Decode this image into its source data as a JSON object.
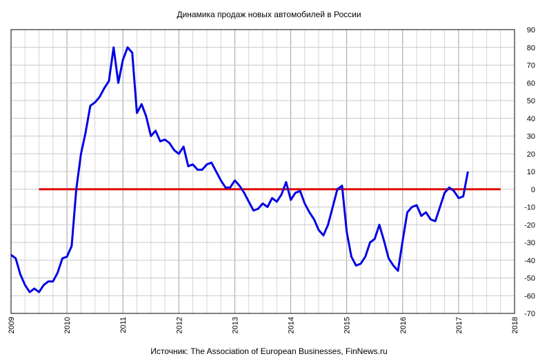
{
  "chart_data": {
    "type": "line",
    "title": "Динамика продаж новых автомобилей в России",
    "source": "Источник: The Association of European Businesses, FinNews.ru",
    "xlabel": "",
    "ylabel": "",
    "x_ticks": [
      "2009",
      "2010",
      "2011",
      "2012",
      "2013",
      "2014",
      "2015",
      "2016",
      "2017",
      "2018"
    ],
    "y_ticks": [
      90,
      80,
      70,
      60,
      50,
      40,
      30,
      20,
      10,
      0,
      -10,
      -20,
      -30,
      -40,
      -50,
      -60,
      -70
    ],
    "xlim": [
      "2009-01",
      "2018-01"
    ],
    "ylim": [
      -70,
      90
    ],
    "y_axis_position": "right",
    "grid": true,
    "reference_line": {
      "value": 0,
      "x_start": "2009-07",
      "x_end": "2017-10",
      "color": "#e00000"
    },
    "series": [
      {
        "color": "#0000e6",
        "points": [
          [
            "2009-01",
            -37
          ],
          [
            "2009-02",
            -39
          ],
          [
            "2009-03",
            -48
          ],
          [
            "2009-04",
            -54
          ],
          [
            "2009-05",
            -58
          ],
          [
            "2009-06",
            -56
          ],
          [
            "2009-07",
            -58
          ],
          [
            "2009-08",
            -54
          ],
          [
            "2009-09",
            -52
          ],
          [
            "2009-10",
            -52
          ],
          [
            "2009-11",
            -47
          ],
          [
            "2009-12",
            -39
          ],
          [
            "2010-01",
            -38
          ],
          [
            "2010-02",
            -32
          ],
          [
            "2010-03",
            0
          ],
          [
            "2010-04",
            20
          ],
          [
            "2010-05",
            32
          ],
          [
            "2010-06",
            47
          ],
          [
            "2010-07",
            49
          ],
          [
            "2010-08",
            52
          ],
          [
            "2010-09",
            57
          ],
          [
            "2010-10",
            61
          ],
          [
            "2010-11",
            80
          ],
          [
            "2010-12",
            60
          ],
          [
            "2011-01",
            73
          ],
          [
            "2011-02",
            80
          ],
          [
            "2011-03",
            77
          ],
          [
            "2011-04",
            43
          ],
          [
            "2011-05",
            48
          ],
          [
            "2011-06",
            41
          ],
          [
            "2011-07",
            30
          ],
          [
            "2011-08",
            33
          ],
          [
            "2011-09",
            27
          ],
          [
            "2011-10",
            28
          ],
          [
            "2011-11",
            26
          ],
          [
            "2011-12",
            22
          ],
          [
            "2012-01",
            20
          ],
          [
            "2012-02",
            24
          ],
          [
            "2012-03",
            13
          ],
          [
            "2012-04",
            14
          ],
          [
            "2012-05",
            11
          ],
          [
            "2012-06",
            11
          ],
          [
            "2012-07",
            14
          ],
          [
            "2012-08",
            15
          ],
          [
            "2012-09",
            10
          ],
          [
            "2012-10",
            5
          ],
          [
            "2012-11",
            1
          ],
          [
            "2012-12",
            1
          ],
          [
            "2013-01",
            5
          ],
          [
            "2013-02",
            2
          ],
          [
            "2013-03",
            -2
          ],
          [
            "2013-04",
            -7
          ],
          [
            "2013-05",
            -12
          ],
          [
            "2013-06",
            -11
          ],
          [
            "2013-07",
            -8
          ],
          [
            "2013-08",
            -10
          ],
          [
            "2013-09",
            -5
          ],
          [
            "2013-10",
            -7
          ],
          [
            "2013-11",
            -3
          ],
          [
            "2013-12",
            4
          ],
          [
            "2014-01",
            -6
          ],
          [
            "2014-02",
            -2
          ],
          [
            "2014-03",
            -1
          ],
          [
            "2014-04",
            -8
          ],
          [
            "2014-05",
            -13
          ],
          [
            "2014-06",
            -17
          ],
          [
            "2014-07",
            -23
          ],
          [
            "2014-08",
            -26
          ],
          [
            "2014-09",
            -20
          ],
          [
            "2014-10",
            -10
          ],
          [
            "2014-11",
            0
          ],
          [
            "2014-12",
            2
          ],
          [
            "2015-01",
            -24
          ],
          [
            "2015-02",
            -38
          ],
          [
            "2015-03",
            -43
          ],
          [
            "2015-04",
            -42
          ],
          [
            "2015-05",
            -38
          ],
          [
            "2015-06",
            -30
          ],
          [
            "2015-07",
            -28
          ],
          [
            "2015-08",
            -20
          ],
          [
            "2015-09",
            -29
          ],
          [
            "2015-10",
            -39
          ],
          [
            "2015-11",
            -43
          ],
          [
            "2015-12",
            -46
          ],
          [
            "2016-01",
            -29
          ],
          [
            "2016-02",
            -13
          ],
          [
            "2016-03",
            -10
          ],
          [
            "2016-04",
            -9
          ],
          [
            "2016-05",
            -15
          ],
          [
            "2016-06",
            -13
          ],
          [
            "2016-07",
            -17
          ],
          [
            "2016-08",
            -18
          ],
          [
            "2016-09",
            -10
          ],
          [
            "2016-10",
            -2
          ],
          [
            "2016-11",
            1
          ],
          [
            "2016-12",
            -1
          ],
          [
            "2017-01",
            -5
          ],
          [
            "2017-02",
            -4
          ],
          [
            "2017-03",
            10
          ]
        ]
      }
    ]
  }
}
